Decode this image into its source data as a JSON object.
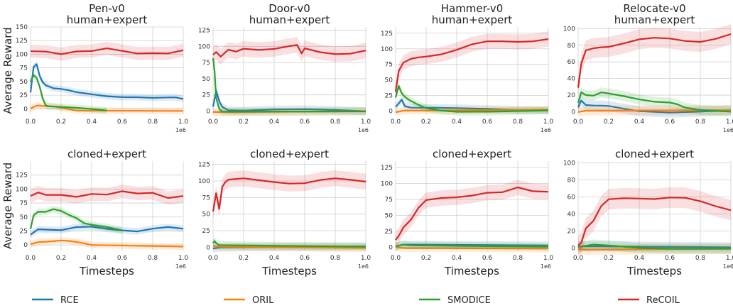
{
  "ylabel": "Average Reward",
  "xlabel": "Timesteps",
  "x_exponent": "1e6",
  "legend": [
    {
      "name": "RCE",
      "color": "#1f77b4"
    },
    {
      "name": "ORIL",
      "color": "#ff7f0e"
    },
    {
      "name": "SMODICE",
      "color": "#2ca02c"
    },
    {
      "name": "ReCOIL",
      "color": "#d62728"
    }
  ],
  "chart_data": [
    {
      "type": "line",
      "title": "Pen-v0",
      "subtitle": "human+expert",
      "xlim": [
        0,
        1.0
      ],
      "ylim": [
        -10,
        150
      ],
      "xticks": [
        "0.0",
        "0.2",
        "0.4",
        "0.6",
        "0.8",
        "1.0"
      ],
      "yticks": [
        0,
        25,
        50,
        75,
        100,
        125,
        150
      ],
      "series": [
        {
          "name": "RCE",
          "x": [
            0,
            0.02,
            0.04,
            0.06,
            0.08,
            0.1,
            0.15,
            0.2,
            0.25,
            0.3,
            0.4,
            0.5,
            0.6,
            0.7,
            0.8,
            0.9,
            0.95,
            1.0
          ],
          "y": [
            30,
            75,
            80,
            60,
            50,
            45,
            38,
            35,
            32,
            30,
            28,
            25,
            22,
            20,
            18,
            20,
            22,
            20
          ]
        },
        {
          "name": "ORIL",
          "x": [
            0,
            0.02,
            0.05,
            0.1,
            0.15,
            0.2,
            0.25,
            0.3,
            1.0
          ],
          "y": [
            0,
            5,
            8,
            5,
            3,
            0,
            -1,
            -2,
            -2
          ]
        },
        {
          "name": "SMODICE",
          "x": [
            0,
            0.02,
            0.04,
            0.06,
            0.08,
            0.1,
            0.12,
            0.2,
            0.3,
            0.4,
            0.5
          ],
          "y": [
            50,
            60,
            55,
            40,
            20,
            8,
            5,
            2,
            0,
            -1,
            -2
          ]
        },
        {
          "name": "ReCOIL",
          "x": [
            0,
            0.1,
            0.2,
            0.3,
            0.4,
            0.5,
            0.6,
            0.7,
            0.8,
            0.9,
            1.0
          ],
          "y": [
            105,
            108,
            104,
            106,
            103,
            107,
            105,
            104,
            106,
            103,
            105
          ]
        }
      ]
    },
    {
      "type": "line",
      "title": "Door-v0",
      "subtitle": "human+expert",
      "xlim": [
        0,
        1.0
      ],
      "ylim": [
        -5,
        130
      ],
      "xticks": [
        "0.0",
        "0.2",
        "0.4",
        "0.6",
        "0.8",
        "1.0"
      ],
      "yticks": [
        0,
        25,
        50,
        75,
        100,
        125
      ],
      "series": [
        {
          "name": "RCE",
          "x": [
            0,
            0.02,
            0.04,
            0.06,
            0.1,
            0.2,
            0.4,
            0.6,
            0.8,
            1.0
          ],
          "y": [
            5,
            30,
            15,
            8,
            3,
            1,
            1,
            1,
            1,
            1
          ]
        },
        {
          "name": "ORIL",
          "x": [
            0,
            0.05,
            1.0
          ],
          "y": [
            0,
            0,
            0
          ]
        },
        {
          "name": "SMODICE",
          "x": [
            0,
            0.01,
            0.02,
            0.04,
            0.06,
            1.0
          ],
          "y": [
            80,
            60,
            20,
            5,
            1,
            0
          ]
        },
        {
          "name": "ReCOIL",
          "x": [
            0,
            0.02,
            0.05,
            0.1,
            0.15,
            0.2,
            0.3,
            0.4,
            0.5,
            0.55,
            0.58,
            0.6,
            0.7,
            0.8,
            0.9,
            1.0
          ],
          "y": [
            90,
            95,
            85,
            92,
            88,
            95,
            97,
            100,
            102,
            100,
            85,
            95,
            93,
            92,
            91,
            92
          ]
        }
      ]
    },
    {
      "type": "line",
      "title": "Hammer-v0",
      "subtitle": "human+expert",
      "xlim": [
        0,
        1.0
      ],
      "ylim": [
        -5,
        135
      ],
      "xticks": [
        "0.0",
        "0.2",
        "0.4",
        "0.6",
        "0.8",
        "1.0"
      ],
      "yticks": [
        0,
        25,
        50,
        75,
        100,
        125
      ],
      "series": [
        {
          "name": "RCE",
          "x": [
            0,
            0.02,
            0.04,
            0.06,
            0.1,
            0.2,
            0.4,
            0.6,
            0.8,
            1.0
          ],
          "y": [
            5,
            12,
            20,
            10,
            6,
            4,
            3,
            3,
            3,
            3
          ]
        },
        {
          "name": "ORIL",
          "x": [
            0,
            0.05,
            1.0
          ],
          "y": [
            0,
            1,
            1
          ]
        },
        {
          "name": "SMODICE",
          "x": [
            0,
            0.02,
            0.04,
            0.06,
            0.08,
            0.1,
            0.15,
            0.2,
            0.3,
            0.4,
            0.6,
            1.0
          ],
          "y": [
            20,
            40,
            30,
            25,
            20,
            15,
            8,
            4,
            2,
            1,
            0,
            0
          ]
        },
        {
          "name": "ReCOIL",
          "x": [
            0,
            0.02,
            0.05,
            0.1,
            0.15,
            0.2,
            0.3,
            0.4,
            0.5,
            0.6,
            0.7,
            0.8,
            0.9,
            1.0
          ],
          "y": [
            35,
            65,
            75,
            80,
            85,
            90,
            95,
            100,
            105,
            108,
            110,
            113,
            116,
            118
          ]
        }
      ]
    },
    {
      "type": "line",
      "title": "Relocate-v0",
      "subtitle": "human+expert",
      "xlim": [
        0,
        1.0
      ],
      "ylim": [
        -3,
        102
      ],
      "xticks": [
        "0.0",
        "0.2",
        "0.4",
        "0.6",
        "0.8",
        "1.0"
      ],
      "yticks": [
        0,
        20,
        40,
        60,
        80,
        100
      ],
      "series": [
        {
          "name": "RCE",
          "x": [
            0,
            0.02,
            0.05,
            0.1,
            0.15,
            0.2,
            0.3,
            0.4,
            0.6,
            0.8,
            1.0
          ],
          "y": [
            5,
            15,
            10,
            8,
            6,
            5,
            3,
            2,
            1,
            1,
            1
          ]
        },
        {
          "name": "ORIL",
          "x": [
            0,
            0.05,
            1.0
          ],
          "y": [
            0,
            0,
            0
          ]
        },
        {
          "name": "SMODICE",
          "x": [
            0,
            0.02,
            0.05,
            0.1,
            0.15,
            0.2,
            0.3,
            0.4,
            0.5,
            0.6,
            0.65,
            0.7,
            0.8,
            1.0
          ],
          "y": [
            10,
            25,
            22,
            20,
            22,
            20,
            18,
            16,
            14,
            12,
            8,
            3,
            1,
            1
          ]
        },
        {
          "name": "ReCOIL",
          "x": [
            0,
            0.02,
            0.05,
            0.1,
            0.15,
            0.2,
            0.3,
            0.4,
            0.5,
            0.6,
            0.7,
            0.8,
            0.9,
            1.0
          ],
          "y": [
            30,
            55,
            70,
            75,
            80,
            82,
            84,
            85,
            85,
            86,
            87,
            88,
            90,
            92
          ]
        }
      ]
    },
    {
      "type": "line",
      "title": "",
      "subtitle": "cloned+expert",
      "xlim": [
        0,
        1.0
      ],
      "ylim": [
        -10,
        150
      ],
      "xticks": [
        "0.0",
        "0.2",
        "0.4",
        "0.6",
        "0.8",
        "1.0"
      ],
      "yticks": [
        0,
        25,
        50,
        75,
        100,
        125
      ],
      "series": [
        {
          "name": "RCE",
          "x": [
            0,
            0.05,
            0.1,
            0.2,
            0.3,
            0.4,
            0.5,
            0.6,
            0.7,
            0.8,
            0.9,
            1.0
          ],
          "y": [
            20,
            30,
            28,
            25,
            30,
            32,
            30,
            28,
            25,
            28,
            30,
            28
          ]
        },
        {
          "name": "ORIL",
          "x": [
            0,
            0.05,
            0.1,
            0.15,
            0.2,
            0.25,
            0.3,
            0.35,
            0.4,
            1.0
          ],
          "y": [
            0,
            3,
            5,
            8,
            10,
            8,
            4,
            1,
            -1,
            -2
          ]
        },
        {
          "name": "SMODICE",
          "x": [
            0,
            0.02,
            0.05,
            0.1,
            0.15,
            0.2,
            0.25,
            0.3,
            0.35,
            0.4,
            0.5,
            0.6
          ],
          "y": [
            30,
            55,
            60,
            58,
            62,
            60,
            55,
            50,
            40,
            35,
            30,
            25
          ]
        },
        {
          "name": "ReCOIL",
          "x": [
            0,
            0.05,
            0.1,
            0.2,
            0.3,
            0.4,
            0.5,
            0.6,
            0.7,
            0.8,
            0.9,
            1.0
          ],
          "y": [
            85,
            90,
            88,
            92,
            90,
            93,
            88,
            92,
            90,
            95,
            88,
            90
          ]
        }
      ]
    },
    {
      "type": "line",
      "title": "",
      "subtitle": "cloned+expert",
      "xlim": [
        0,
        1.0
      ],
      "ylim": [
        -5,
        130
      ],
      "xticks": [
        "0.0",
        "0.2",
        "0.4",
        "0.6",
        "0.8",
        "1.0"
      ],
      "yticks": [
        0,
        25,
        50,
        75,
        100,
        125
      ],
      "series": [
        {
          "name": "RCE",
          "x": [
            0,
            0.05,
            1.0
          ],
          "y": [
            0,
            0,
            0
          ]
        },
        {
          "name": "ORIL",
          "x": [
            0,
            0.05,
            1.0
          ],
          "y": [
            0,
            0,
            0
          ]
        },
        {
          "name": "SMODICE",
          "x": [
            0,
            0.01,
            0.02,
            0.04,
            1.0
          ],
          "y": [
            8,
            10,
            5,
            1,
            0
          ]
        },
        {
          "name": "ReCOIL",
          "x": [
            0,
            0.02,
            0.04,
            0.06,
            0.08,
            0.1,
            0.2,
            0.3,
            0.4,
            0.5,
            0.6,
            0.7,
            0.8,
            0.9,
            1.0
          ],
          "y": [
            50,
            80,
            60,
            95,
            100,
            100,
            100,
            99,
            100,
            100,
            99,
            100,
            100,
            99,
            100
          ]
        }
      ]
    },
    {
      "type": "line",
      "title": "",
      "subtitle": "cloned+expert",
      "xlim": [
        0,
        1.0
      ],
      "ylim": [
        -5,
        135
      ],
      "xticks": [
        "0.0",
        "0.2",
        "0.4",
        "0.6",
        "0.8",
        "1.0"
      ],
      "yticks": [
        0,
        25,
        50,
        75,
        100,
        125
      ],
      "series": [
        {
          "name": "RCE",
          "x": [
            0,
            0.05,
            1.0
          ],
          "y": [
            2,
            3,
            1
          ]
        },
        {
          "name": "ORIL",
          "x": [
            0,
            0.05,
            1.0
          ],
          "y": [
            0,
            0,
            0
          ]
        },
        {
          "name": "SMODICE",
          "x": [
            0,
            0.05,
            0.1,
            1.0
          ],
          "y": [
            2,
            3,
            1,
            0
          ]
        },
        {
          "name": "ReCOIL",
          "x": [
            0,
            0.02,
            0.05,
            0.1,
            0.15,
            0.2,
            0.3,
            0.4,
            0.5,
            0.6,
            0.7,
            0.8,
            0.9,
            1.0
          ],
          "y": [
            10,
            20,
            35,
            45,
            60,
            70,
            75,
            80,
            85,
            88,
            85,
            90,
            85,
            88
          ]
        }
      ]
    },
    {
      "type": "line",
      "title": "",
      "subtitle": "cloned+expert",
      "xlim": [
        0,
        1.0
      ],
      "ylim": [
        -3,
        102
      ],
      "xticks": [
        "0.0",
        "0.2",
        "0.4",
        "0.6",
        "0.8",
        "1.0"
      ],
      "yticks": [
        0,
        20,
        40,
        60,
        80,
        100
      ],
      "series": [
        {
          "name": "RCE",
          "x": [
            0,
            0.05,
            1.0
          ],
          "y": [
            0,
            0,
            0
          ]
        },
        {
          "name": "ORIL",
          "x": [
            0,
            0.05,
            1.0
          ],
          "y": [
            0,
            0,
            0
          ]
        },
        {
          "name": "SMODICE",
          "x": [
            0,
            0.1,
            0.2,
            0.4,
            0.6,
            1.0
          ],
          "y": [
            0,
            2,
            2,
            1,
            1,
            0
          ]
        },
        {
          "name": "ReCOIL",
          "x": [
            0,
            0.02,
            0.05,
            0.1,
            0.15,
            0.2,
            0.3,
            0.4,
            0.5,
            0.6,
            0.7,
            0.8,
            0.9,
            1.0
          ],
          "y": [
            5,
            10,
            25,
            30,
            45,
            55,
            60,
            62,
            60,
            58,
            55,
            52,
            50,
            48
          ]
        }
      ]
    }
  ]
}
